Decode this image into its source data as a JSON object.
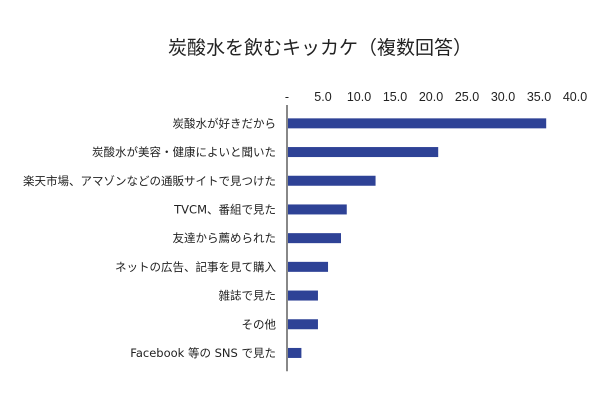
{
  "chart_data": {
    "type": "bar",
    "orientation": "horizontal",
    "title": "炭酸水を飲むキッカケ（複数回答）",
    "xlabel": "",
    "ylabel": "",
    "xlim": [
      0,
      40
    ],
    "x_ticks": [
      "-",
      "5.0",
      "10.0",
      "15.0",
      "20.0",
      "25.0",
      "30.0",
      "35.0",
      "40.0"
    ],
    "x_tick_values": [
      0,
      5,
      10,
      15,
      20,
      25,
      30,
      35,
      40
    ],
    "grid": false,
    "legend": "none",
    "bar_color": "#2e4296",
    "categories": [
      "炭酸水が好きだから",
      "炭酸水が美容・健康によいと聞いた",
      "楽天市場、アマゾンなどの通販サイトで見つけた",
      "TVCM、番組で見た",
      "友達から薦められた",
      "ネットの広告、記事を見て購入",
      "雑誌で見た",
      "その他",
      "Facebook 等の SNS で見た"
    ],
    "values": [
      36.0,
      21.0,
      12.3,
      8.3,
      7.5,
      5.7,
      4.3,
      4.3,
      2.0
    ]
  }
}
